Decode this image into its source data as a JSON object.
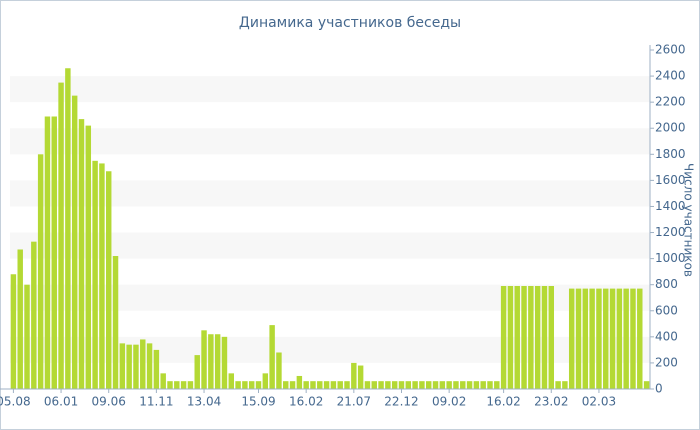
{
  "chart_data": {
    "type": "bar",
    "title": "Динамика участников беседы",
    "y_label": "Число участников",
    "categories": [
      "05.08",
      null,
      null,
      null,
      null,
      null,
      null,
      "06.01",
      null,
      null,
      null,
      null,
      null,
      null,
      "09.06",
      null,
      null,
      null,
      null,
      null,
      null,
      "11.11",
      null,
      null,
      null,
      null,
      null,
      null,
      "13.04",
      null,
      null,
      null,
      null,
      null,
      null,
      null,
      "15.09",
      null,
      null,
      null,
      null,
      null,
      null,
      "16.02",
      null,
      null,
      null,
      null,
      null,
      null,
      "21.07",
      null,
      null,
      null,
      null,
      null,
      null,
      "22.12",
      null,
      null,
      null,
      null,
      null,
      null,
      "09.02",
      null,
      null,
      null,
      null,
      null,
      null,
      null,
      "16.02",
      null,
      null,
      null,
      null,
      null,
      null,
      "23.02",
      null,
      null,
      null,
      null,
      null,
      null,
      "02.03",
      null,
      null,
      null,
      null,
      null,
      null,
      null
    ],
    "values": [
      880,
      1070,
      800,
      1130,
      1800,
      2090,
      2090,
      2350,
      2460,
      2250,
      2070,
      2020,
      1750,
      1730,
      1670,
      1020,
      350,
      340,
      340,
      380,
      350,
      300,
      120,
      60,
      60,
      60,
      60,
      260,
      450,
      420,
      420,
      400,
      120,
      60,
      60,
      60,
      60,
      120,
      490,
      280,
      60,
      60,
      100,
      60,
      60,
      60,
      60,
      60,
      60,
      60,
      200,
      180,
      60,
      60,
      60,
      60,
      60,
      60,
      60,
      60,
      60,
      60,
      60,
      60,
      60,
      60,
      60,
      60,
      60,
      60,
      60,
      60,
      790,
      790,
      790,
      790,
      790,
      790,
      790,
      790,
      60,
      60,
      770,
      770,
      770,
      770,
      770,
      770,
      770,
      770,
      770,
      770,
      770,
      60
    ],
    "color": "#b4d934",
    "ylim": [
      0,
      2600
    ],
    "yticks": [
      0,
      200,
      400,
      600,
      800,
      1000,
      1200,
      1400,
      1600,
      1800,
      2000,
      2200,
      2400,
      2600
    ],
    "grid": true
  }
}
